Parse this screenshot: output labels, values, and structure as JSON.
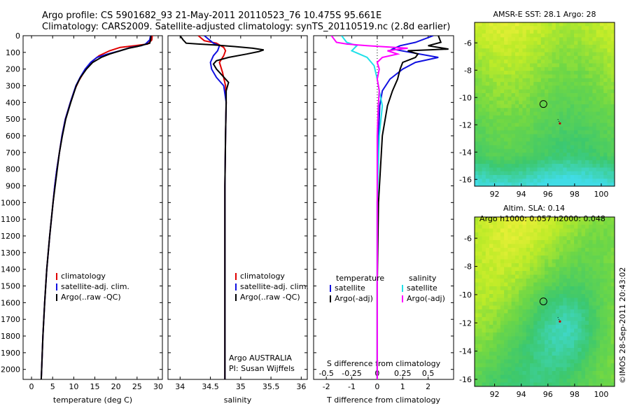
{
  "header": {
    "line1": "Argo profile: CS 5901682_93 21-May-2011 20110523_76 10.475S 95.661E",
    "line2": "Climatology: CARS2009. Satellite-adjusted climatology: synTS_20110519.nc (2.8d earlier)"
  },
  "colors": {
    "climatology": "#e00000",
    "satellite": "#1010e0",
    "argo": "#000000",
    "sal_satellite": "#20e0e8",
    "sal_argo": "#ff00ff"
  },
  "depth_ticks": [
    "0",
    "100",
    "200",
    "300",
    "400",
    "500",
    "600",
    "700",
    "800",
    "900",
    "1000",
    "1100",
    "1200",
    "1300",
    "1400",
    "1500",
    "1600",
    "1700",
    "1800",
    "1900",
    "2000"
  ],
  "chart_data": [
    {
      "type": "line",
      "xlabel": "temperature (deg C)",
      "ylabel": "",
      "xlim": [
        -2,
        31
      ],
      "ylim": [
        2060,
        0
      ],
      "xticks": [
        "0",
        "5",
        "10",
        "15",
        "20",
        "25",
        "30"
      ],
      "legend": [
        "climatology",
        "satellite-adj. clim.",
        "Argo(..raw -QC)"
      ],
      "series": [
        {
          "name": "climatology",
          "points": [
            [
              0,
              28.6
            ],
            [
              25,
              28.5
            ],
            [
              50,
              27.5
            ],
            [
              60,
              24.5
            ],
            [
              70,
              21
            ],
            [
              90,
              18.5
            ],
            [
              120,
              16
            ],
            [
              150,
              14.5
            ],
            [
              180,
              13.5
            ],
            [
              220,
              12.4
            ],
            [
              270,
              11.2
            ],
            [
              330,
              10.1
            ],
            [
              400,
              9.2
            ],
            [
              500,
              8
            ],
            [
              600,
              7.2
            ],
            [
              700,
              6.6
            ],
            [
              800,
              6
            ],
            [
              900,
              5.5
            ],
            [
              1000,
              5.1
            ],
            [
              1200,
              4.3
            ],
            [
              1400,
              3.6
            ],
            [
              1600,
              3.1
            ],
            [
              1800,
              2.7
            ],
            [
              2000,
              2.4
            ],
            [
              2060,
              2.3
            ]
          ]
        },
        {
          "name": "satellite-adj. clim.",
          "points": [
            [
              0,
              28.2
            ],
            [
              25,
              28
            ],
            [
              50,
              27
            ],
            [
              60,
              26
            ],
            [
              70,
              23.5
            ],
            [
              90,
              21
            ],
            [
              110,
              18
            ],
            [
              130,
              15.5
            ],
            [
              160,
              14
            ],
            [
              200,
              12.7
            ],
            [
              250,
              11.5
            ],
            [
              300,
              10.5
            ],
            [
              400,
              9.2
            ],
            [
              500,
              8
            ],
            [
              600,
              7.2
            ],
            [
              700,
              6.6
            ],
            [
              800,
              6
            ],
            [
              900,
              5.5
            ],
            [
              1000,
              5.1
            ],
            [
              1200,
              4.3
            ],
            [
              1400,
              3.6
            ],
            [
              1600,
              3.1
            ],
            [
              1800,
              2.7
            ],
            [
              2000,
              2.4
            ],
            [
              2060,
              2.3
            ]
          ]
        },
        {
          "name": "Argo(..raw -QC)",
          "points": [
            [
              0,
              28.3
            ],
            [
              25,
              28.2
            ],
            [
              45,
              28
            ],
            [
              55,
              26.5
            ],
            [
              65,
              25
            ],
            [
              75,
              23
            ],
            [
              90,
              21
            ],
            [
              110,
              18.5
            ],
            [
              130,
              16.5
            ],
            [
              160,
              14.5
            ],
            [
              200,
              13
            ],
            [
              250,
              11.6
            ],
            [
              300,
              10.6
            ],
            [
              400,
              9.3
            ],
            [
              500,
              8.1
            ],
            [
              600,
              7.3
            ],
            [
              700,
              6.6
            ],
            [
              800,
              6.1
            ],
            [
              900,
              5.6
            ],
            [
              1000,
              5.1
            ],
            [
              1200,
              4.3
            ],
            [
              1400,
              3.6
            ],
            [
              1600,
              3.1
            ],
            [
              1800,
              2.7
            ],
            [
              2000,
              2.4
            ],
            [
              2060,
              2.3
            ]
          ]
        }
      ]
    },
    {
      "type": "line",
      "xlabel": "salinity",
      "ylabel": "",
      "xlim": [
        33.8,
        36.1
      ],
      "ylim": [
        2060,
        0
      ],
      "xticks": [
        "34",
        "34.5",
        "35",
        "35.5",
        "36"
      ],
      "legend": [
        "climatology",
        "satellite-adj. clim.",
        "Argo(..raw -QC)"
      ],
      "annotation": [
        "Argo AUSTRALIA",
        "PI: Susan Wijffels"
      ],
      "series": [
        {
          "name": "climatology",
          "points": [
            [
              0,
              34.3
            ],
            [
              30,
              34.4
            ],
            [
              45,
              34.6
            ],
            [
              70,
              34.72
            ],
            [
              90,
              34.75
            ],
            [
              120,
              34.72
            ],
            [
              160,
              34.65
            ],
            [
              220,
              34.7
            ],
            [
              300,
              34.75
            ],
            [
              400,
              34.76
            ],
            [
              600,
              34.75
            ],
            [
              900,
              34.74
            ],
            [
              1200,
              34.74
            ],
            [
              1600,
              34.74
            ],
            [
              2000,
              34.74
            ],
            [
              2060,
              34.74
            ]
          ]
        },
        {
          "name": "satellite-adj. clim.",
          "points": [
            [
              0,
              34.4
            ],
            [
              30,
              34.5
            ],
            [
              45,
              34.55
            ],
            [
              60,
              34.65
            ],
            [
              90,
              34.62
            ],
            [
              120,
              34.55
            ],
            [
              160,
              34.5
            ],
            [
              200,
              34.52
            ],
            [
              250,
              34.6
            ],
            [
              300,
              34.72
            ],
            [
              400,
              34.76
            ],
            [
              600,
              34.75
            ],
            [
              900,
              34.74
            ],
            [
              1200,
              34.74
            ],
            [
              1600,
              34.74
            ],
            [
              2000,
              34.74
            ],
            [
              2060,
              34.74
            ]
          ]
        },
        {
          "name": "Argo(..raw -QC)",
          "points": [
            [
              0,
              34.0
            ],
            [
              25,
              34.05
            ],
            [
              45,
              34.1
            ],
            [
              50,
              34.3
            ],
            [
              55,
              34.55
            ],
            [
              65,
              34.9
            ],
            [
              75,
              35.2
            ],
            [
              85,
              35.38
            ],
            [
              95,
              35.3
            ],
            [
              110,
              35.1
            ],
            [
              130,
              34.8
            ],
            [
              150,
              34.6
            ],
            [
              170,
              34.55
            ],
            [
              200,
              34.6
            ],
            [
              240,
              34.7
            ],
            [
              280,
              34.8
            ],
            [
              330,
              34.76
            ],
            [
              400,
              34.76
            ],
            [
              600,
              34.75
            ],
            [
              900,
              34.74
            ],
            [
              1200,
              34.74
            ],
            [
              1600,
              34.74
            ],
            [
              2000,
              34.74
            ],
            [
              2060,
              34.74
            ]
          ]
        }
      ]
    },
    {
      "type": "line",
      "xlabel": "T difference from climatology",
      "xlabel_top": "S difference from climatology",
      "xlim": [
        -2.5,
        3
      ],
      "ylim": [
        2060,
        0
      ],
      "xticks": [
        "-2",
        "-1",
        "0",
        "1",
        "2"
      ],
      "xticks_top": [
        "-0.5",
        "-0.25",
        "0",
        "0.25",
        "0.5"
      ],
      "legend_left_title": "temperature",
      "legend_right_title": "salinity",
      "legend": [
        "satellite",
        "Argo(-adj)",
        "satellite",
        "Argo(-adj)"
      ],
      "series": [
        {
          "name": "satellite",
          "points": [
            [
              0,
              2.2
            ],
            [
              40,
              1.5
            ],
            [
              60,
              0.9
            ],
            [
              80,
              0.6
            ],
            [
              100,
              1.3
            ],
            [
              130,
              2.4
            ],
            [
              160,
              1.5
            ],
            [
              200,
              1.0
            ],
            [
              260,
              0.5
            ],
            [
              330,
              0.2
            ],
            [
              420,
              0.1
            ],
            [
              600,
              0.05
            ],
            [
              1000,
              0.0
            ],
            [
              1500,
              0.0
            ],
            [
              2060,
              0.0
            ]
          ]
        },
        {
          "name": "Argo(-adj)",
          "points": [
            [
              0,
              2.4
            ],
            [
              40,
              2.5
            ],
            [
              60,
              2.0
            ],
            [
              80,
              2.8
            ],
            [
              90,
              1.2
            ],
            [
              110,
              1.6
            ],
            [
              130,
              1.5
            ],
            [
              160,
              1.0
            ],
            [
              200,
              0.9
            ],
            [
              260,
              0.8
            ],
            [
              330,
              0.6
            ],
            [
              420,
              0.4
            ],
            [
              600,
              0.2
            ],
            [
              1000,
              0.05
            ],
            [
              1500,
              0.0
            ],
            [
              2060,
              0.0
            ]
          ]
        },
        {
          "name": "satellite",
          "points": [
            [
              0,
              -0.35
            ],
            [
              40,
              -0.3
            ],
            [
              60,
              -0.2
            ],
            [
              90,
              -0.25
            ],
            [
              130,
              -0.1
            ],
            [
              180,
              -0.03
            ],
            [
              260,
              0.0
            ],
            [
              330,
              0.02
            ],
            [
              420,
              0.05
            ],
            [
              600,
              0.02
            ],
            [
              1000,
              0.0
            ],
            [
              1500,
              0.0
            ],
            [
              2060,
              0.0
            ]
          ]
        },
        {
          "name": "Argo(-adj)",
          "points": [
            [
              0,
              -0.45
            ],
            [
              40,
              -0.4
            ],
            [
              50,
              -0.3
            ],
            [
              60,
              -0.1
            ],
            [
              75,
              0.3
            ],
            [
              90,
              0.1
            ],
            [
              110,
              0.2
            ],
            [
              130,
              0.05
            ],
            [
              160,
              0.0
            ],
            [
              200,
              0.02
            ],
            [
              260,
              0.0
            ],
            [
              330,
              0.02
            ],
            [
              420,
              0.01
            ],
            [
              600,
              0.0
            ],
            [
              1000,
              0.0
            ],
            [
              1500,
              0.0
            ],
            [
              2060,
              0.0
            ]
          ]
        }
      ]
    },
    {
      "type": "heatmap",
      "title": "AMSR-E SST: 28.1  Argo: 28",
      "xlim": [
        90.5,
        101
      ],
      "ylim": [
        -16.5,
        -4.5
      ],
      "xticks": [
        "92",
        "94",
        "96",
        "98",
        "100"
      ],
      "yticks": [
        "-6",
        "-8",
        "-10",
        "-12",
        "-14",
        "-16"
      ],
      "marker": [
        95.66,
        -10.48
      ],
      "track_point": [
        96.9,
        -11.9
      ]
    },
    {
      "type": "heatmap",
      "title": "Altim. SLA: 0.14",
      "subtitle": "Argo h1000: 0.057 h2000: 0.048",
      "xlim": [
        90.5,
        101
      ],
      "ylim": [
        -16.5,
        -4.5
      ],
      "xticks": [
        "92",
        "94",
        "96",
        "98",
        "100"
      ],
      "yticks": [
        "-6",
        "-8",
        "-10",
        "-12",
        "-14",
        "-16"
      ],
      "marker": [
        95.66,
        -10.48
      ],
      "track_point": [
        96.9,
        -11.9
      ]
    }
  ],
  "footer": "©IMOS 28-Sep-2011 20:43:02"
}
